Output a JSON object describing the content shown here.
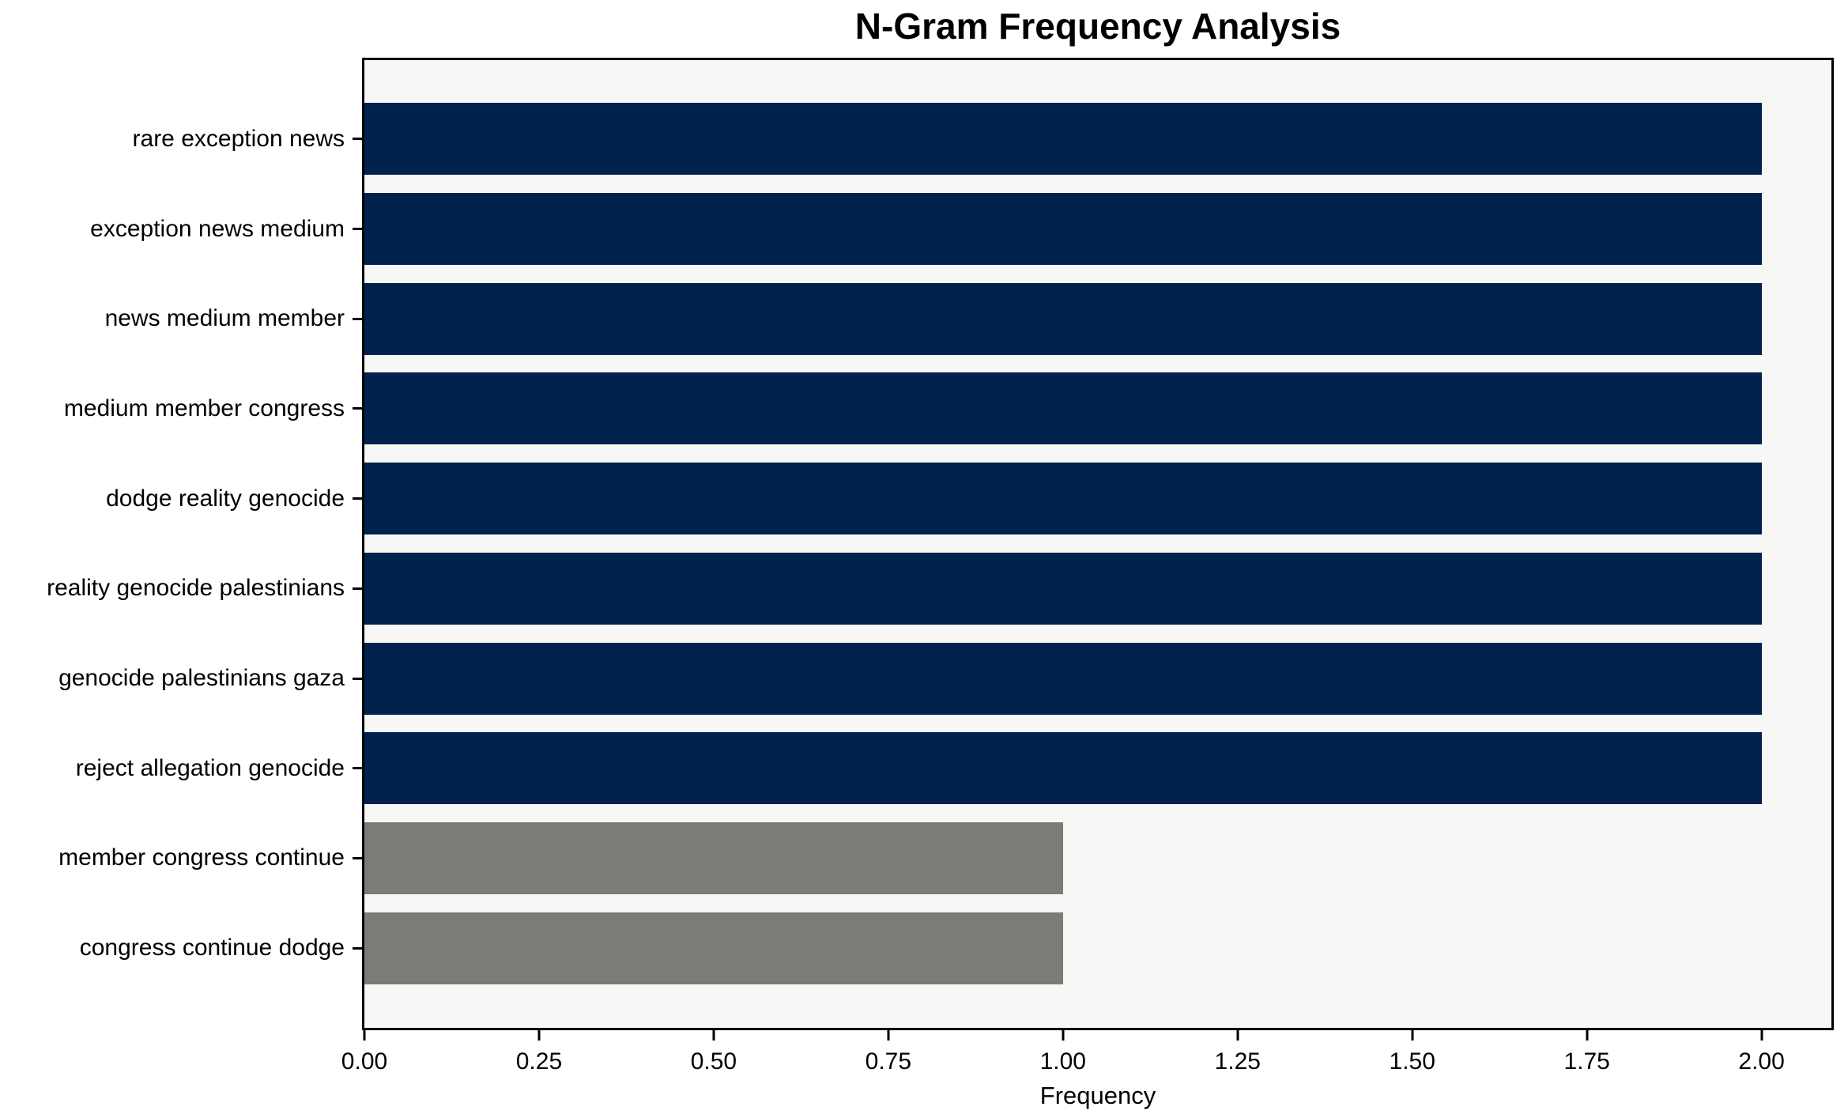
{
  "chart_data": {
    "type": "bar",
    "orientation": "horizontal",
    "title": "N-Gram Frequency Analysis",
    "xlabel": "Frequency",
    "categories": [
      "rare exception news",
      "exception news medium",
      "news medium member",
      "medium member congress",
      "dodge reality genocide",
      "reality genocide palestinians",
      "genocide palestinians gaza",
      "reject allegation genocide",
      "member congress continue",
      "congress continue dodge"
    ],
    "values": [
      2,
      2,
      2,
      2,
      2,
      2,
      2,
      2,
      1,
      1
    ],
    "bar_colors": [
      "#01224c",
      "#01224c",
      "#01224c",
      "#01224c",
      "#01224c",
      "#01224c",
      "#01224c",
      "#01224c",
      "#7b7b78",
      "#7b7b78"
    ],
    "xlim": [
      0,
      2.1
    ],
    "xticks": [
      {
        "label": "0.00",
        "value": 0
      },
      {
        "label": "0.25",
        "value": 0.25
      },
      {
        "label": "0.50",
        "value": 0.5
      },
      {
        "label": "0.75",
        "value": 0.75
      },
      {
        "label": "1.00",
        "value": 1.0
      },
      {
        "label": "1.25",
        "value": 1.25
      },
      {
        "label": "1.50",
        "value": 1.5
      },
      {
        "label": "1.75",
        "value": 1.75
      },
      {
        "label": "2.00",
        "value": 2.0
      }
    ],
    "grid": false,
    "legend": null,
    "colors": {
      "bar_primary": "#01224c",
      "bar_secondary": "#7b7b78",
      "plot_background": "#f7f7f6",
      "figure_background": "#ffffff",
      "spine": "#000000",
      "text": "#000000"
    }
  }
}
